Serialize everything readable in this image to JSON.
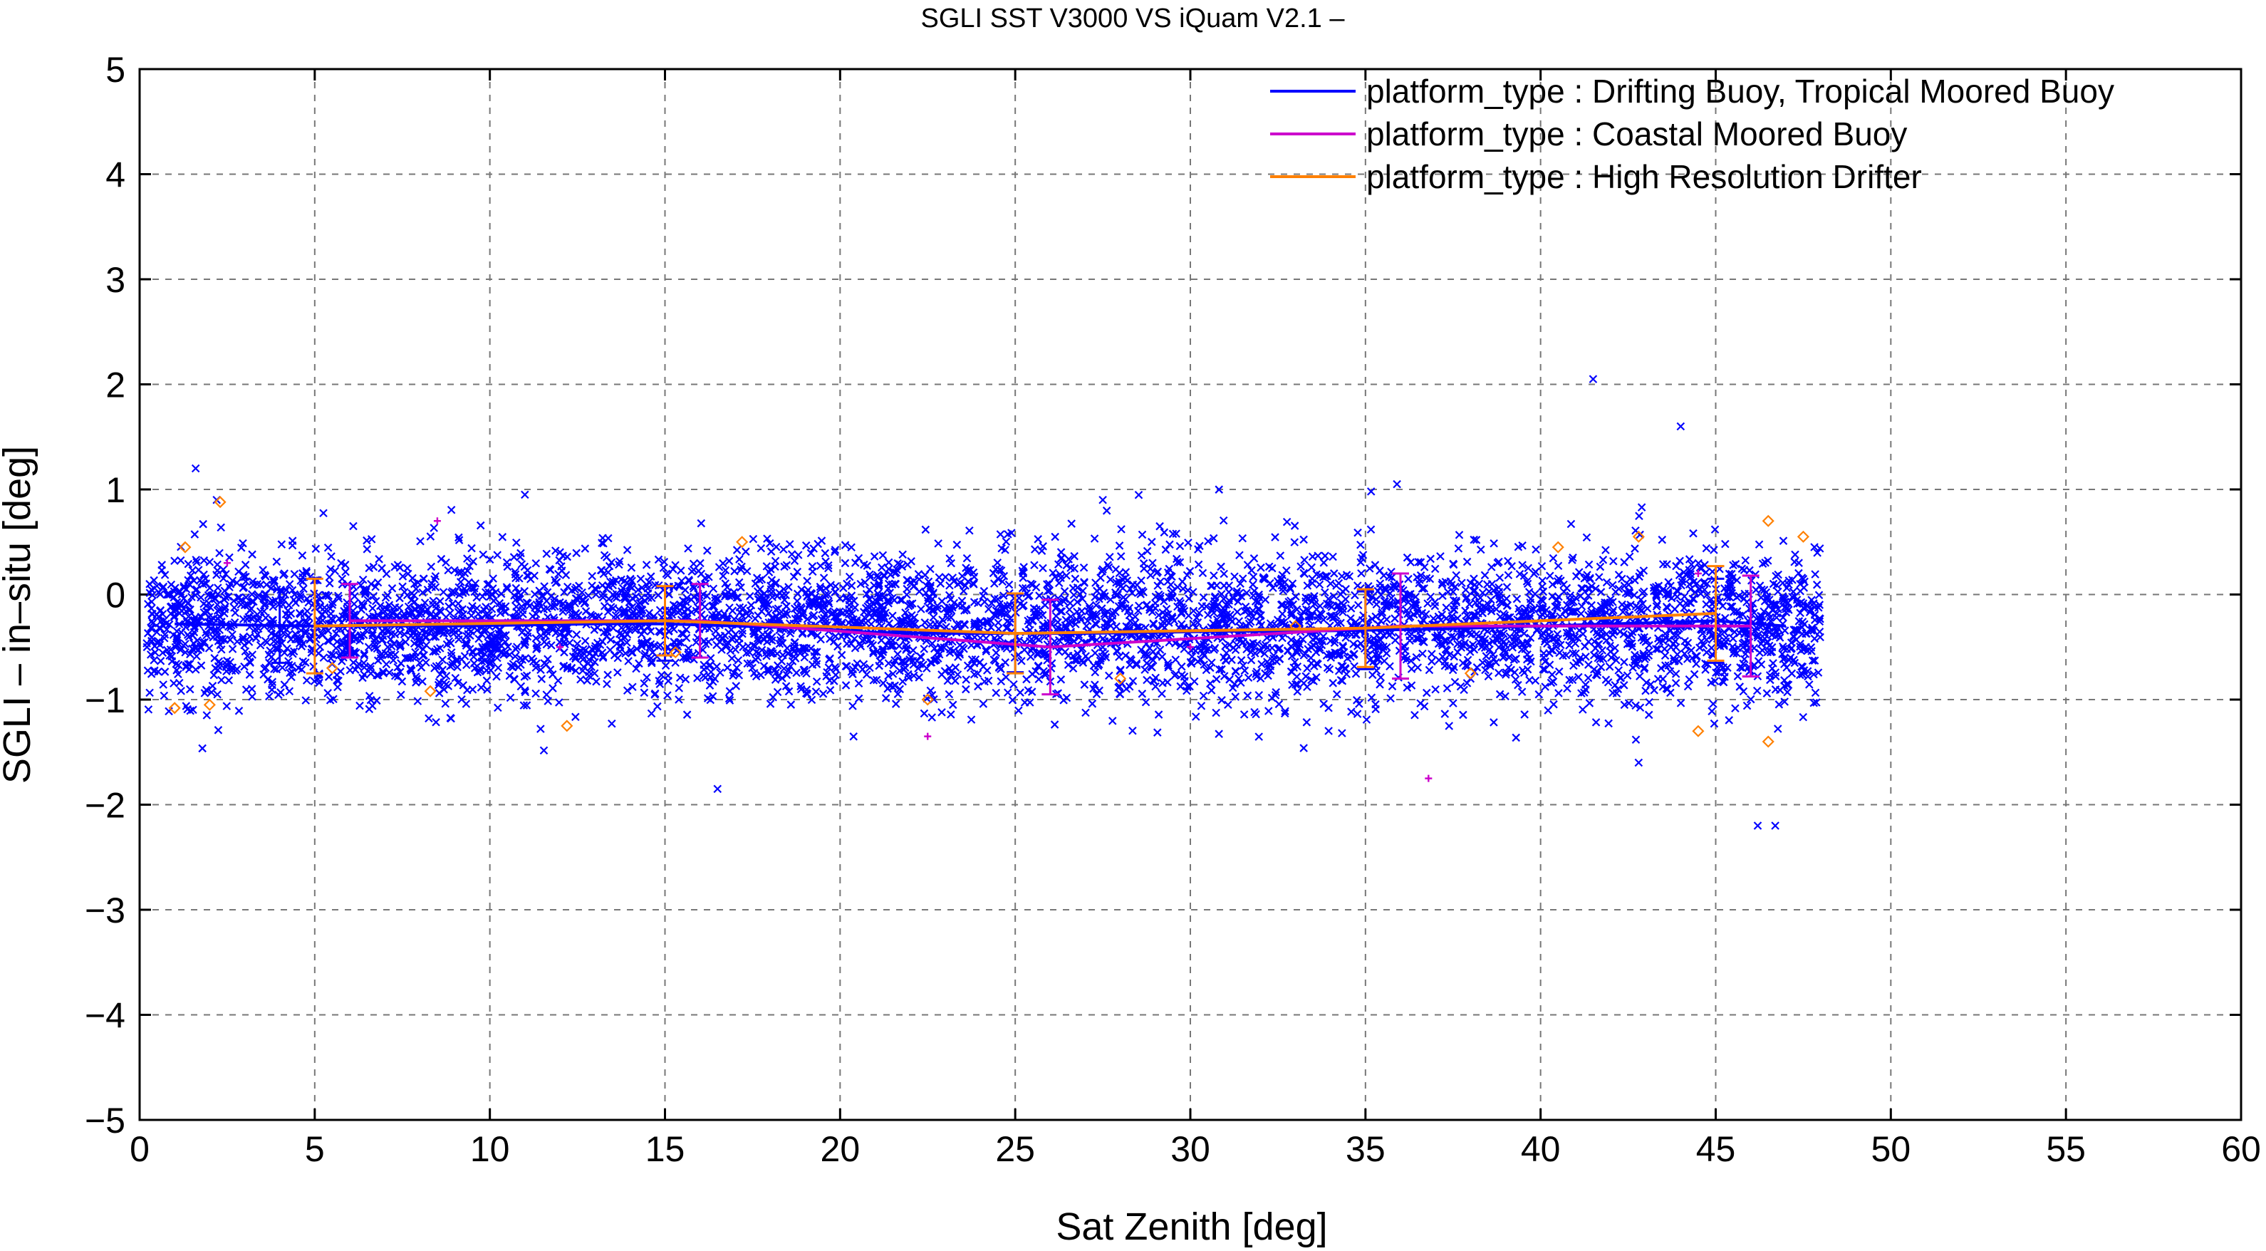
{
  "chart_data": {
    "type": "scatter",
    "title": "SGLI SST V3000 VS iQuam V2.1  –",
    "xlabel": "Sat Zenith [deg]",
    "ylabel": "SGLI – in–situ [deg]",
    "xlim": [
      0,
      60
    ],
    "ylim": [
      -5,
      5
    ],
    "xticks": [
      0,
      5,
      10,
      15,
      20,
      25,
      30,
      35,
      40,
      45,
      50,
      55,
      60
    ],
    "yticks": [
      -5,
      -4,
      -3,
      -2,
      -1,
      0,
      1,
      2,
      3,
      4,
      5
    ],
    "ytick_labels": [
      "−5",
      "−4",
      "−3",
      "−2",
      "−1",
      "0",
      "1",
      "2",
      "3",
      "4",
      "5"
    ],
    "grid": true,
    "legend_position": "top-right",
    "series": [
      {
        "name": "platform_type : Drifting Buoy, Tropical Moored Buoy",
        "color": "#0000ff",
        "marker": "x",
        "point_range": {
          "x": [
            0.2,
            48.0
          ],
          "y_center": -0.3,
          "y_spread": 0.35
        },
        "outliers": [
          [
            1.6,
            1.2
          ],
          [
            2.2,
            0.9
          ],
          [
            41.5,
            2.05
          ],
          [
            44.0,
            1.6
          ],
          [
            35.9,
            1.05
          ],
          [
            46.2,
            -2.2
          ],
          [
            46.7,
            -2.2
          ],
          [
            16.5,
            -1.85
          ],
          [
            42.8,
            -1.6
          ],
          [
            11.0,
            0.95
          ],
          [
            27.5,
            0.9
          ]
        ],
        "mean_line": {
          "x": [
            1,
            3,
            5,
            7,
            9,
            11,
            13,
            15,
            17,
            19,
            21,
            23,
            25,
            27,
            29,
            31,
            33,
            35,
            37,
            39,
            41,
            43,
            45,
            47
          ],
          "y": [
            -0.28,
            -0.29,
            -0.3,
            -0.3,
            -0.3,
            -0.29,
            -0.28,
            -0.28,
            -0.3,
            -0.32,
            -0.36,
            -0.37,
            -0.37,
            -0.37,
            -0.36,
            -0.35,
            -0.35,
            -0.34,
            -0.33,
            -0.31,
            -0.29,
            -0.27,
            -0.25,
            -0.3
          ]
        },
        "error_bars": [
          {
            "x": 4,
            "mean": -0.3,
            "sd": 0.35
          },
          {
            "x": 15,
            "mean": -0.28,
            "sd": 0.35
          },
          {
            "x": 25,
            "mean": -0.37,
            "sd": 0.37
          },
          {
            "x": 35,
            "mean": -0.34,
            "sd": 0.37
          },
          {
            "x": 45,
            "mean": -0.25,
            "sd": 0.4
          }
        ]
      },
      {
        "name": "platform_type : Coastal Moored Buoy",
        "color": "#cc00cc",
        "marker": "+",
        "points": [
          [
            8.5,
            0.7
          ],
          [
            22.5,
            -1.35
          ],
          [
            36.8,
            -1.75
          ],
          [
            2.5,
            0.3
          ],
          [
            12.0,
            -0.5
          ],
          [
            30.0,
            -0.5
          ],
          [
            44.5,
            0.2
          ]
        ],
        "mean_line": {
          "x": [
            6,
            16,
            26,
            36,
            46
          ],
          "y": [
            -0.25,
            -0.25,
            -0.5,
            -0.3,
            -0.3
          ]
        },
        "error_bars": [
          {
            "x": 6,
            "mean": -0.25,
            "sd": 0.35
          },
          {
            "x": 16,
            "mean": -0.25,
            "sd": 0.35
          },
          {
            "x": 26,
            "mean": -0.5,
            "sd": 0.45
          },
          {
            "x": 36,
            "mean": -0.3,
            "sd": 0.5
          },
          {
            "x": 46,
            "mean": -0.3,
            "sd": 0.48
          }
        ]
      },
      {
        "name": "platform_type : High Resolution Drifter",
        "color": "#ff8000",
        "marker": "diamond",
        "points": [
          [
            2.3,
            0.88
          ],
          [
            1.3,
            0.45
          ],
          [
            2.0,
            -1.05
          ],
          [
            1.0,
            -1.08
          ],
          [
            8.3,
            -0.92
          ],
          [
            12.2,
            -1.25
          ],
          [
            17.2,
            0.5
          ],
          [
            22.5,
            -1.0
          ],
          [
            28.0,
            -0.8
          ],
          [
            33.0,
            -0.3
          ],
          [
            40.5,
            0.45
          ],
          [
            42.8,
            0.55
          ],
          [
            44.5,
            -1.3
          ],
          [
            46.5,
            0.7
          ],
          [
            46.5,
            -1.4
          ],
          [
            47.5,
            0.55
          ],
          [
            5.5,
            -0.7
          ],
          [
            15.3,
            -0.55
          ],
          [
            38.0,
            -0.75
          ]
        ],
        "mean_line": {
          "x": [
            5,
            15,
            25,
            35,
            45
          ],
          "y": [
            -0.3,
            -0.25,
            -0.37,
            -0.32,
            -0.18
          ]
        },
        "error_bars": [
          {
            "x": 5,
            "mean": -0.3,
            "sd": 0.45
          },
          {
            "x": 15,
            "mean": -0.25,
            "sd": 0.33
          },
          {
            "x": 25,
            "mean": -0.37,
            "sd": 0.38
          },
          {
            "x": 35,
            "mean": -0.32,
            "sd": 0.37
          },
          {
            "x": 45,
            "mean": -0.18,
            "sd": 0.45
          }
        ]
      }
    ]
  }
}
